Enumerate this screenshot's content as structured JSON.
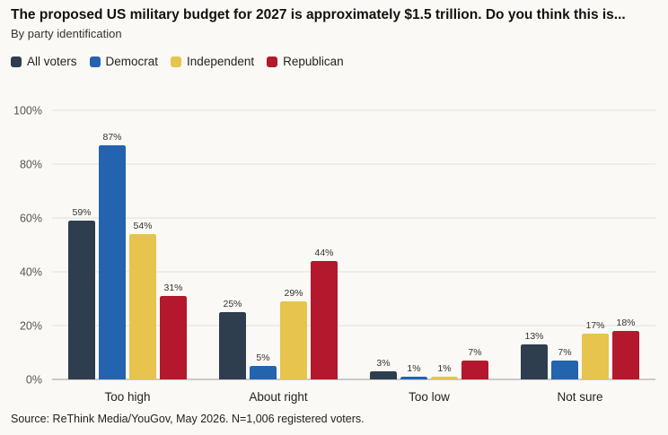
{
  "title": "The proposed US military budget for 2027 is approximately $1.5 trillion. Do you think this is...",
  "subtitle": "By party identification",
  "source": "Source: ReThink Media/YouGov, May 2026. N=1,006 registered voters.",
  "chart_data": {
    "type": "bar",
    "categories": [
      "Too high",
      "About right",
      "Too low",
      "Not sure"
    ],
    "series": [
      {
        "name": "All voters",
        "color": "#2e3e4f",
        "values": [
          59,
          25,
          3,
          13
        ],
        "labels": [
          "59%",
          "25%",
          "3%",
          "13%"
        ]
      },
      {
        "name": "Democrat",
        "color": "#2463ae",
        "values": [
          87,
          5,
          1,
          7
        ],
        "labels": [
          "87%",
          "5%",
          "1%",
          "7%"
        ]
      },
      {
        "name": "Independent",
        "color": "#e6c44e",
        "values": [
          54,
          29,
          1,
          17
        ],
        "labels": [
          "54%",
          "29%",
          "1%",
          "17%"
        ]
      },
      {
        "name": "Republican",
        "color": "#b4182c",
        "values": [
          31,
          44,
          7,
          18
        ],
        "labels": [
          "31%",
          "44%",
          "7%",
          "18%"
        ]
      }
    ],
    "ylim": [
      0,
      100
    ],
    "yticks": [
      0,
      20,
      40,
      60,
      80,
      100
    ],
    "ytick_labels": [
      "0%",
      "20%",
      "40%",
      "60%",
      "80%",
      "100%"
    ],
    "grid": true,
    "legend_position": "top-left"
  }
}
